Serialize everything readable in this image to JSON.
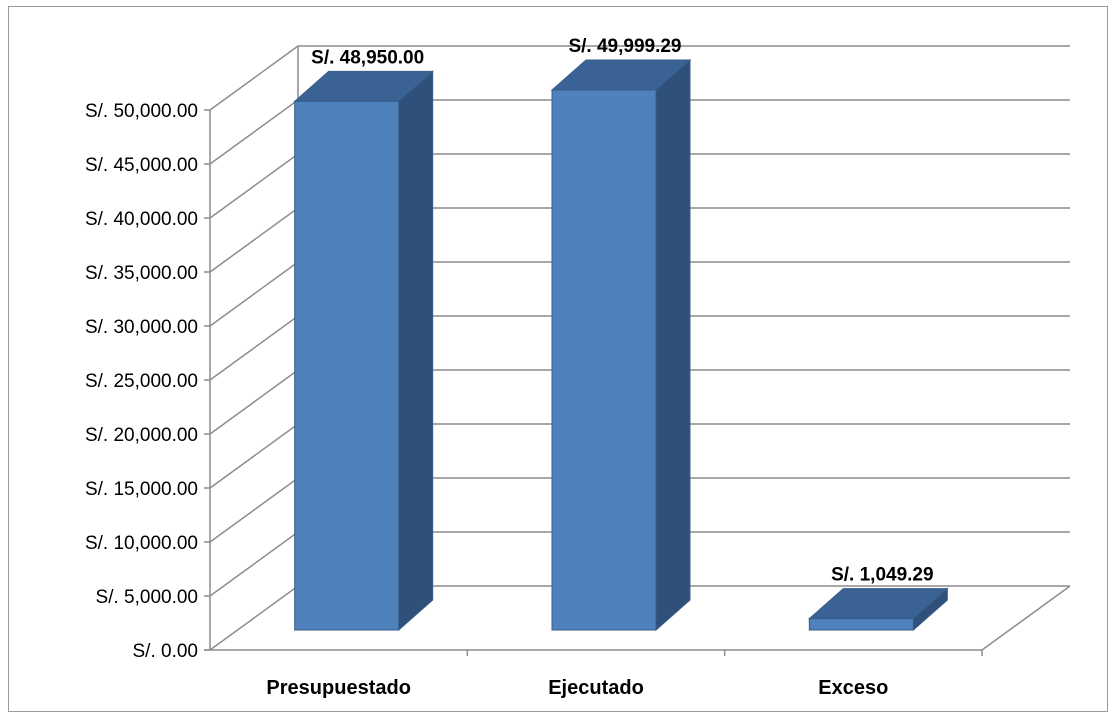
{
  "chart_data": {
    "type": "bar",
    "style": "3d-column",
    "categories": [
      "Presupuestado",
      "Ejecutado",
      "Exceso"
    ],
    "values": [
      48950.0,
      49999.29,
      1049.29
    ],
    "data_labels": [
      "S/. 48,950.00",
      "S/. 49,999.29",
      "S/. 1,049.29"
    ],
    "yticks": [
      "S/. 0.00",
      "S/. 5,000.00",
      "S/. 10,000.00",
      "S/. 15,000.00",
      "S/. 20,000.00",
      "S/. 25,000.00",
      "S/. 30,000.00",
      "S/. 35,000.00",
      "S/. 40,000.00",
      "S/. 45,000.00",
      "S/. 50,000.00"
    ],
    "ylim": [
      0,
      50000
    ],
    "ystep": 5000,
    "title": "",
    "xlabel": "",
    "ylabel": "",
    "grid": true,
    "legend": "none",
    "colors": {
      "bar_front": "#4f81bd",
      "bar_side": "#2f5079",
      "bar_top": "#3b6294",
      "bar_outline": "#385d8a",
      "gridline": "#8c8c8c"
    }
  }
}
